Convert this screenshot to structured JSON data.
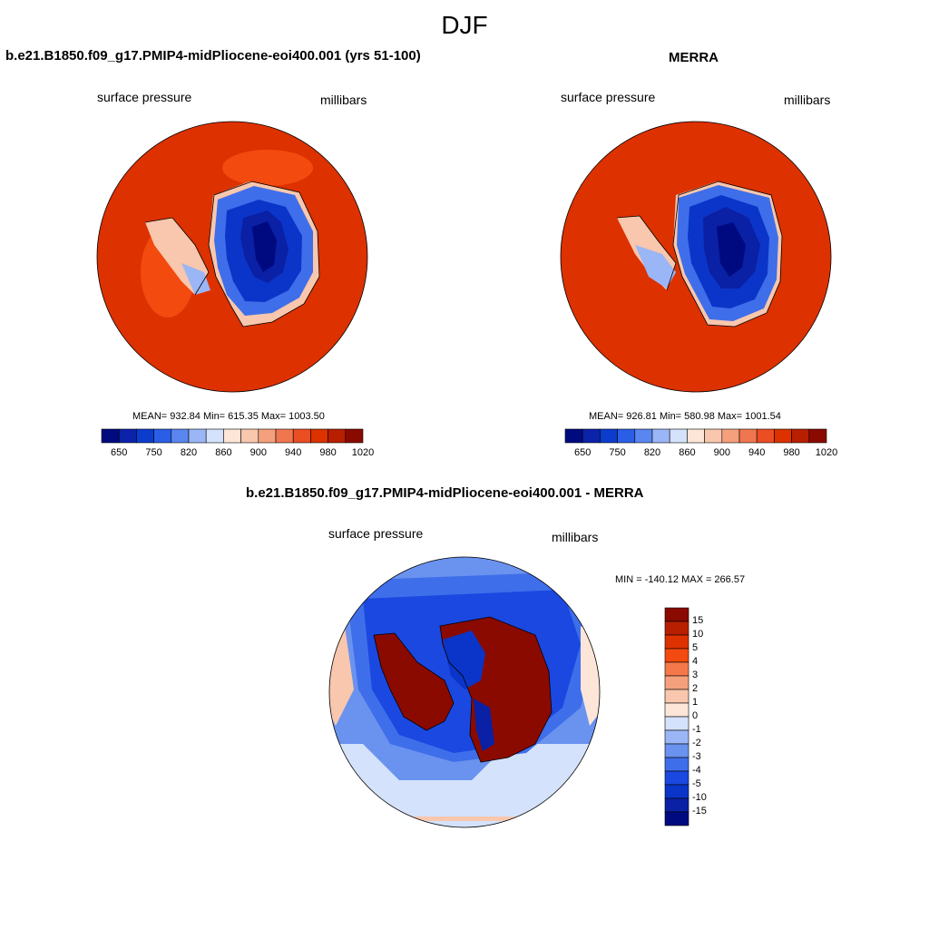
{
  "figure": {
    "title": "DJF"
  },
  "panels": [
    {
      "title": "b.e21.B1850.f09_g17.PMIP4-midPliocene-eoi400.001 (yrs 51-100)",
      "left_label": "surface pressure",
      "right_label": "millibars",
      "stats": "MEAN= 932.84  Min= 615.35  Max= 1003.50"
    },
    {
      "title": "MERRA",
      "left_label": "surface pressure",
      "right_label": "millibars",
      "stats": "MEAN= 926.81  Min= 580.98  Max= 1001.54"
    },
    {
      "title": "b.e21.B1850.f09_g17.PMIP4-midPliocene-eoi400.001 - MERRA",
      "left_label": "surface pressure",
      "right_label": "millibars",
      "stats": "MIN = -140.12 MAX = 266.57"
    }
  ],
  "colorbars": {
    "abs": {
      "labels": [
        "650",
        "750",
        "820",
        "860",
        "900",
        "940",
        "980",
        "1020"
      ],
      "colors": [
        "#000a80",
        "#0a23a8",
        "#0b3ccc",
        "#2a5ee6",
        "#5a86ef",
        "#9bb6f6",
        "#d4e2fb",
        "#fde6d8",
        "#f8c7ad",
        "#f4a07c",
        "#f07650",
        "#ea4e22",
        "#dd3100",
        "#b81f00",
        "#8a0a00"
      ]
    },
    "diff": {
      "labels": [
        "15",
        "10",
        "5",
        "4",
        "3",
        "2",
        "1",
        "0",
        "-1",
        "-2",
        "-3",
        "-4",
        "-5",
        "-10",
        "-15"
      ],
      "colors": [
        "#8a0a00",
        "#b81f00",
        "#dd3100",
        "#f24a0f",
        "#f5784a",
        "#f5a07c",
        "#f8c7ad",
        "#fde6d8",
        "#d4e2fb",
        "#9bb6f6",
        "#6a92ef",
        "#3f6eea",
        "#1a48e0",
        "#0b35c8",
        "#0a20a5",
        "#000a80"
      ]
    }
  }
}
